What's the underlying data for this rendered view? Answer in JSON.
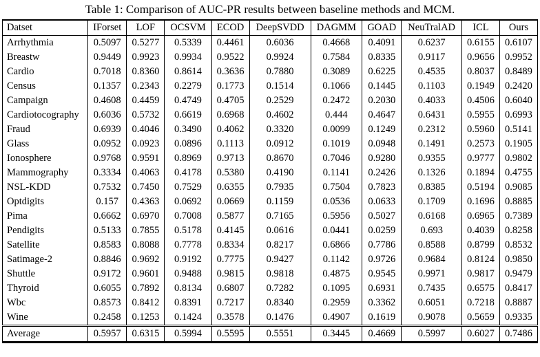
{
  "title": "Table 1: Comparison of AUC-PR results between baseline methods and MCM.",
  "table": {
    "header": [
      "Datset",
      "IForset",
      "LOF",
      "OCSVM",
      "ECOD",
      "DeepSVDD",
      "DAGMM",
      "GOAD",
      "NeuTralAD",
      "ICL",
      "Ours"
    ],
    "rows": [
      {
        "label": "Arrhythmia",
        "values": [
          "0.5097",
          "0.5277",
          "0.5339",
          "0.4461",
          "0.6036",
          "0.4668",
          "0.4091",
          "0.6237",
          "0.6155",
          "0.6107"
        ],
        "bold": 7
      },
      {
        "label": "Breastw",
        "values": [
          "0.9449",
          "0.9923",
          "0.9934",
          "0.9522",
          "0.9924",
          "0.7584",
          "0.8335",
          "0.9117",
          "0.9656",
          "0.9952"
        ],
        "bold": 9
      },
      {
        "label": "Cardio",
        "values": [
          "0.7018",
          "0.8360",
          "0.8614",
          "0.3636",
          "0.7880",
          "0.3089",
          "0.6225",
          "0.4535",
          "0.8037",
          "0.8489"
        ],
        "bold": 2
      },
      {
        "label": "Census",
        "values": [
          "0.1357",
          "0.2343",
          "0.2279",
          "0.1773",
          "0.1514",
          "0.1066",
          "0.1445",
          "0.1103",
          "0.1949",
          "0.2420"
        ],
        "bold": 9
      },
      {
        "label": "Campaign",
        "values": [
          "0.4608",
          "0.4459",
          "0.4749",
          "0.4705",
          "0.2529",
          "0.2472",
          "0.2030",
          "0.4033",
          "0.4506",
          "0.6040"
        ],
        "bold": 9
      },
      {
        "label": "Cardiotocography",
        "values": [
          "0.6036",
          "0.5732",
          "0.6619",
          "0.6968",
          "0.4602",
          "0.444",
          "0.4647",
          "0.6431",
          "0.5955",
          "0.6993"
        ],
        "bold": 9
      },
      {
        "label": "Fraud",
        "values": [
          "0.6939",
          "0.4046",
          "0.3490",
          "0.4062",
          "0.3320",
          "0.0099",
          "0.1249",
          "0.2312",
          "0.5960",
          "0.5141"
        ],
        "bold": 0
      },
      {
        "label": "Glass",
        "values": [
          "0.0952",
          "0.0923",
          "0.0896",
          "0.1113",
          "0.0912",
          "0.1019",
          "0.0948",
          "0.1491",
          "0.2573",
          "0.1905"
        ],
        "bold": 8
      },
      {
        "label": "Ionosphere",
        "values": [
          "0.9768",
          "0.9591",
          "0.8969",
          "0.9713",
          "0.8670",
          "0.7046",
          "0.9280",
          "0.9355",
          "0.9777",
          "0.9802"
        ],
        "bold": 9
      },
      {
        "label": "Mammography",
        "values": [
          "0.3334",
          "0.4063",
          "0.4178",
          "0.5380",
          "0.4190",
          "0.1141",
          "0.2426",
          "0.1326",
          "0.1894",
          "0.4755"
        ],
        "bold": 3
      },
      {
        "label": "NSL-KDD",
        "values": [
          "0.7532",
          "0.7450",
          "0.7529",
          "0.6355",
          "0.7935",
          "0.7504",
          "0.7823",
          "0.8385",
          "0.5194",
          "0.9085"
        ],
        "bold": 9
      },
      {
        "label": "Optdigits",
        "values": [
          "0.157",
          "0.4363",
          "0.0692",
          "0.0669",
          "0.1159",
          "0.0536",
          "0.0633",
          "0.1709",
          "0.1696",
          "0.8885"
        ],
        "bold": 9
      },
      {
        "label": "Pima",
        "values": [
          "0.6662",
          "0.6970",
          "0.7008",
          "0.5877",
          "0.7165",
          "0.5956",
          "0.5027",
          "0.6168",
          "0.6965",
          "0.7389"
        ],
        "bold": 9
      },
      {
        "label": "Pendigits",
        "values": [
          "0.5133",
          "0.7855",
          "0.5178",
          "0.4145",
          "0.0616",
          "0.0441",
          "0.0259",
          "0.693",
          "0.4039",
          "0.8258"
        ],
        "bold": 9
      },
      {
        "label": "Satellite",
        "values": [
          "0.8583",
          "0.8088",
          "0.7778",
          "0.8334",
          "0.8217",
          "0.6866",
          "0.7786",
          "0.8588",
          "0.8799",
          "0.8532"
        ],
        "bold": 8
      },
      {
        "label": "Satimage-2",
        "values": [
          "0.8846",
          "0.9692",
          "0.9192",
          "0.7775",
          "0.9427",
          "0.1142",
          "0.9726",
          "0.9684",
          "0.8124",
          "0.9850"
        ],
        "bold": 9
      },
      {
        "label": "Shuttle",
        "values": [
          "0.9172",
          "0.9601",
          "0.9488",
          "0.9815",
          "0.9818",
          "0.4875",
          "0.9545",
          "0.9971",
          "0.9817",
          "0.9479"
        ],
        "bold": 7
      },
      {
        "label": "Thyroid",
        "values": [
          "0.6055",
          "0.7892",
          "0.8134",
          "0.6807",
          "0.7282",
          "0.1095",
          "0.6931",
          "0.7435",
          "0.6575",
          "0.8417"
        ],
        "bold": 9
      },
      {
        "label": "Wbc",
        "values": [
          "0.8573",
          "0.8412",
          "0.8391",
          "0.7217",
          "0.8340",
          "0.2959",
          "0.3362",
          "0.6051",
          "0.7218",
          "0.8887"
        ],
        "bold": 9
      },
      {
        "label": "Wine",
        "values": [
          "0.2458",
          "0.1253",
          "0.1424",
          "0.3578",
          "0.1476",
          "0.4907",
          "0.1619",
          "0.9078",
          "0.5659",
          "0.9335"
        ],
        "bold": 9
      }
    ],
    "footer": {
      "label": "Average",
      "values": [
        "0.5957",
        "0.6315",
        "0.5994",
        "0.5595",
        "0.5551",
        "0.3445",
        "0.4669",
        "0.5997",
        "0.6027",
        "0.7486"
      ],
      "bold": 9
    }
  }
}
